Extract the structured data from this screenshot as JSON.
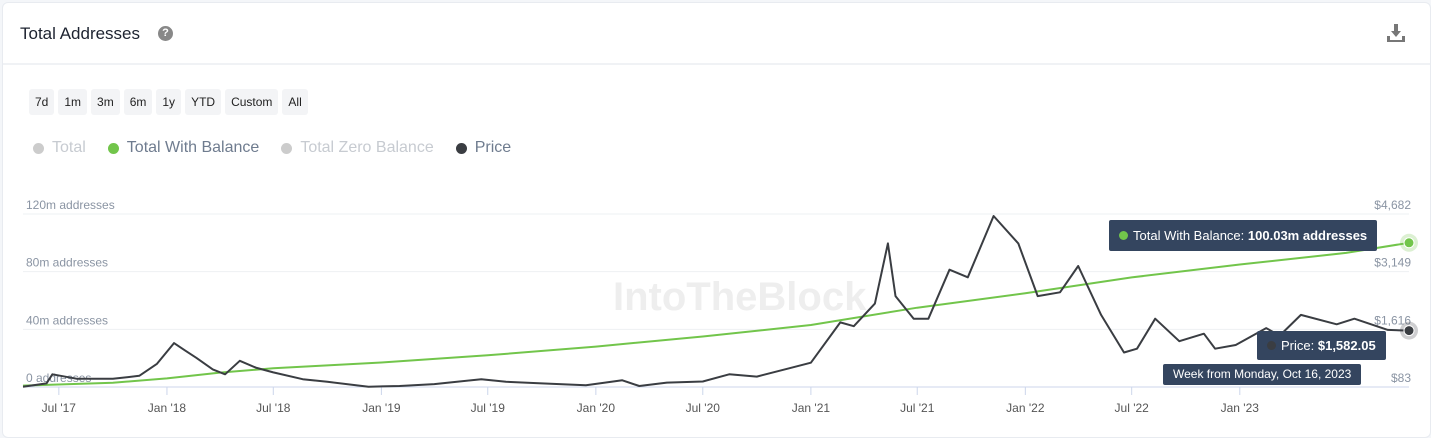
{
  "header": {
    "title": "Total Addresses",
    "help_icon": "?"
  },
  "ranges": [
    "7d",
    "1m",
    "3m",
    "6m",
    "1y",
    "YTD",
    "Custom",
    "All"
  ],
  "legend": [
    {
      "label": "Total",
      "color": "#cccccc",
      "active": false
    },
    {
      "label": "Total With Balance",
      "color": "#72c54b",
      "active": true
    },
    {
      "label": "Total Zero Balance",
      "color": "#cccccc",
      "active": false
    },
    {
      "label": "Price",
      "color": "#3a3d42",
      "active": true
    }
  ],
  "watermark": "IntoTheBlock",
  "tooltips": {
    "balance_label": "Total With Balance:",
    "balance_value": "100.03m addresses",
    "price_label": "Price:",
    "price_value": "$1,582.05",
    "date": "Week from Monday, Oct 16, 2023"
  },
  "chart_data": {
    "type": "line",
    "title": "Total Addresses",
    "x_range": [
      "2017-05-01",
      "2023-10-16"
    ],
    "left_axis": {
      "ticks": [
        0,
        40,
        80,
        120
      ],
      "labels": [
        "0 addresses",
        "40m addresses",
        "80m addresses",
        "120m addresses"
      ],
      "range": [
        0,
        120
      ]
    },
    "right_axis": {
      "ticks": [
        83,
        1616,
        3149,
        4682
      ],
      "labels": [
        "$83",
        "$1,616",
        "$3,149",
        "$4,682"
      ],
      "range": [
        83,
        4682
      ]
    },
    "x_ticks": [
      [
        "2017-07-01",
        "Jul '17"
      ],
      [
        "2018-01-01",
        "Jan '18"
      ],
      [
        "2018-07-01",
        "Jul '18"
      ],
      [
        "2019-01-01",
        "Jan '19"
      ],
      [
        "2019-07-01",
        "Jul '19"
      ],
      [
        "2020-01-01",
        "Jan '20"
      ],
      [
        "2020-07-01",
        "Jul '20"
      ],
      [
        "2021-01-01",
        "Jan '21"
      ],
      [
        "2021-07-01",
        "Jul '21"
      ],
      [
        "2022-01-01",
        "Jan '22"
      ],
      [
        "2022-07-01",
        "Jul '22"
      ],
      [
        "2023-01-01",
        "Jan '23"
      ]
    ],
    "grid": true,
    "series": [
      {
        "name": "Total With Balance",
        "unit": "m addresses",
        "axis": "left",
        "color": "#72c54b",
        "points": [
          [
            "2017-05-01",
            1
          ],
          [
            "2017-10-01",
            3
          ],
          [
            "2018-01-01",
            6
          ],
          [
            "2018-04-01",
            10
          ],
          [
            "2018-07-01",
            13
          ],
          [
            "2019-01-01",
            17
          ],
          [
            "2019-07-01",
            22
          ],
          [
            "2020-01-01",
            28
          ],
          [
            "2020-07-01",
            35
          ],
          [
            "2021-01-01",
            43
          ],
          [
            "2021-07-01",
            55
          ],
          [
            "2022-01-01",
            65
          ],
          [
            "2022-07-01",
            76
          ],
          [
            "2023-01-01",
            85
          ],
          [
            "2023-07-01",
            93
          ],
          [
            "2023-10-16",
            100.03
          ]
        ]
      },
      {
        "name": "Price",
        "unit": "USD",
        "axis": "right",
        "color": "#3a3d42",
        "points": [
          [
            "2017-05-01",
            90
          ],
          [
            "2017-06-10",
            180
          ],
          [
            "2017-06-20",
            420
          ],
          [
            "2017-08-01",
            300
          ],
          [
            "2017-10-01",
            300
          ],
          [
            "2017-11-15",
            380
          ],
          [
            "2017-12-15",
            700
          ],
          [
            "2018-01-13",
            1250
          ],
          [
            "2018-02-01",
            1050
          ],
          [
            "2018-02-20",
            860
          ],
          [
            "2018-03-20",
            550
          ],
          [
            "2018-04-10",
            420
          ],
          [
            "2018-05-05",
            780
          ],
          [
            "2018-06-01",
            600
          ],
          [
            "2018-07-01",
            470
          ],
          [
            "2018-08-20",
            290
          ],
          [
            "2018-10-01",
            220
          ],
          [
            "2018-12-10",
            90
          ],
          [
            "2019-02-01",
            110
          ],
          [
            "2019-04-01",
            160
          ],
          [
            "2019-06-20",
            290
          ],
          [
            "2019-08-01",
            220
          ],
          [
            "2019-10-01",
            180
          ],
          [
            "2019-12-15",
            130
          ],
          [
            "2020-02-15",
            260
          ],
          [
            "2020-03-15",
            110
          ],
          [
            "2020-05-01",
            200
          ],
          [
            "2020-07-01",
            230
          ],
          [
            "2020-08-15",
            420
          ],
          [
            "2020-10-01",
            360
          ],
          [
            "2020-11-25",
            580
          ],
          [
            "2021-01-01",
            730
          ],
          [
            "2021-02-20",
            1800
          ],
          [
            "2021-03-15",
            1700
          ],
          [
            "2021-04-20",
            2300
          ],
          [
            "2021-05-12",
            3900
          ],
          [
            "2021-05-25",
            2500
          ],
          [
            "2021-06-25",
            1900
          ],
          [
            "2021-07-20",
            1900
          ],
          [
            "2021-08-25",
            3200
          ],
          [
            "2021-09-25",
            3000
          ],
          [
            "2021-11-08",
            4630
          ],
          [
            "2021-12-20",
            3900
          ],
          [
            "2022-01-22",
            2500
          ],
          [
            "2022-03-01",
            2600
          ],
          [
            "2022-04-01",
            3300
          ],
          [
            "2022-05-10",
            2000
          ],
          [
            "2022-06-18",
            1000
          ],
          [
            "2022-07-10",
            1100
          ],
          [
            "2022-08-10",
            1900
          ],
          [
            "2022-09-20",
            1300
          ],
          [
            "2022-11-01",
            1500
          ],
          [
            "2022-11-20",
            1100
          ],
          [
            "2022-12-25",
            1200
          ],
          [
            "2023-02-15",
            1650
          ],
          [
            "2023-03-10",
            1450
          ],
          [
            "2023-04-15",
            2000
          ],
          [
            "2023-06-15",
            1750
          ],
          [
            "2023-07-15",
            1900
          ],
          [
            "2023-09-10",
            1600
          ],
          [
            "2023-10-16",
            1582.05
          ]
        ]
      }
    ]
  }
}
